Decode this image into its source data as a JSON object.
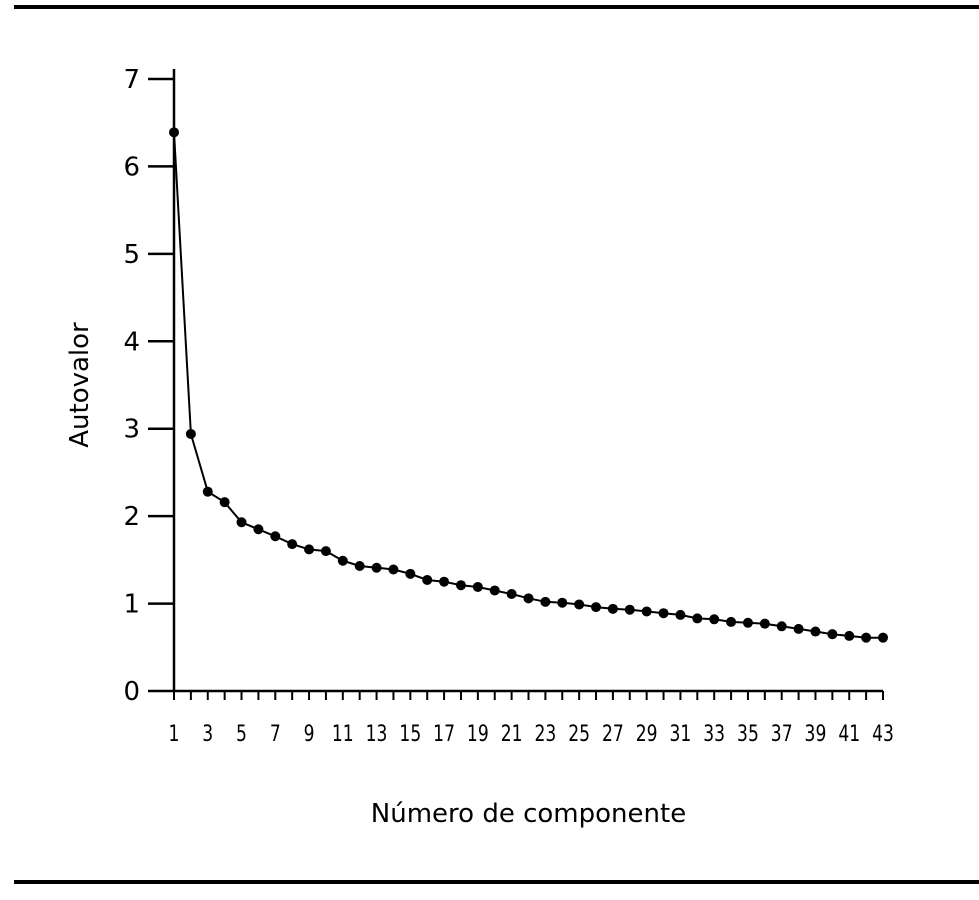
{
  "chart_data": {
    "type": "line",
    "title": "",
    "xlabel": "Número de componente",
    "ylabel": "Autovalor",
    "xlim": [
      1,
      43
    ],
    "ylim": [
      0,
      7
    ],
    "yticks": [
      0,
      1,
      2,
      3,
      4,
      5,
      6,
      7
    ],
    "xticks": [
      1,
      3,
      5,
      7,
      9,
      11,
      13,
      15,
      17,
      19,
      21,
      23,
      25,
      27,
      29,
      31,
      33,
      35,
      37,
      39,
      41,
      43
    ],
    "grid": false,
    "markers": true,
    "line_color": "#000000",
    "x": [
      1,
      2,
      3,
      4,
      5,
      6,
      7,
      8,
      9,
      10,
      11,
      12,
      13,
      14,
      15,
      16,
      17,
      18,
      19,
      20,
      21,
      22,
      23,
      24,
      25,
      26,
      27,
      28,
      29,
      30,
      31,
      32,
      33,
      34,
      35,
      36,
      37,
      38,
      39,
      40,
      41,
      42,
      43
    ],
    "y": [
      6.39,
      2.94,
      2.28,
      2.16,
      1.93,
      1.85,
      1.77,
      1.68,
      1.62,
      1.6,
      1.49,
      1.43,
      1.41,
      1.39,
      1.34,
      1.27,
      1.25,
      1.21,
      1.19,
      1.15,
      1.11,
      1.06,
      1.02,
      1.01,
      0.99,
      0.96,
      0.94,
      0.93,
      0.91,
      0.89,
      0.87,
      0.83,
      0.82,
      0.79,
      0.78,
      0.77,
      0.74,
      0.71,
      0.68,
      0.65,
      0.63,
      0.61,
      0.61
    ]
  }
}
